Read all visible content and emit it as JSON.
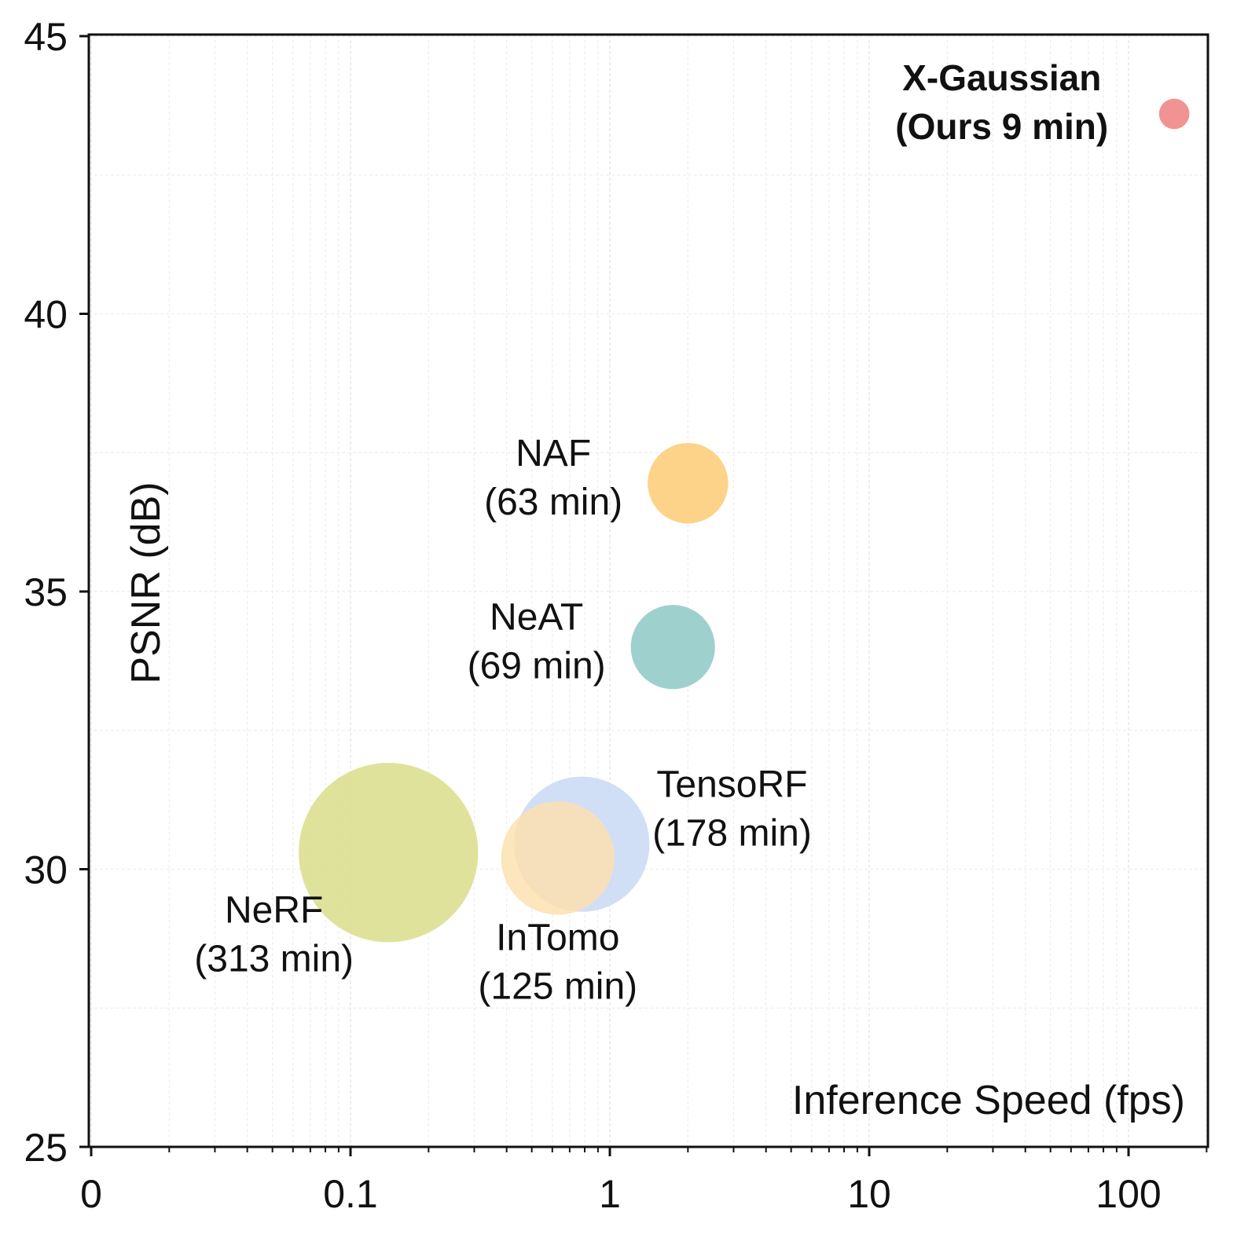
{
  "chart_data": {
    "type": "scatter",
    "xlabel": "Inference Speed (fps)",
    "ylabel": "PSNR (dB)",
    "x_scale": "log",
    "x_ticks": [
      {
        "value": 0.01,
        "label": "0"
      },
      {
        "value": 0.1,
        "label": "0.1"
      },
      {
        "value": 1,
        "label": "1"
      },
      {
        "value": 10,
        "label": "10"
      },
      {
        "value": 100,
        "label": "100"
      }
    ],
    "y_ticks": [
      25,
      30,
      35,
      40,
      45
    ],
    "xlim": [
      0.01,
      200
    ],
    "ylim": [
      25,
      45
    ],
    "grid": true,
    "points": [
      {
        "name": "NeRF",
        "time": "(313 min)",
        "train_min": 313,
        "x": 0.14,
        "y": 30.3,
        "color": "#d9dd8a",
        "label_pos": "bottom-left"
      },
      {
        "name": "TensoRF",
        "time": "(178 min)",
        "train_min": 178,
        "x": 0.78,
        "y": 30.45,
        "color": "#c8d9f5",
        "label_pos": "right"
      },
      {
        "name": "InTomo",
        "time": "(125 min)",
        "train_min": 125,
        "x": 0.63,
        "y": 30.2,
        "color": "#fde0b0",
        "label_pos": "bottom"
      },
      {
        "name": "NeAT",
        "time": "(69 min)",
        "train_min": 69,
        "x": 1.75,
        "y": 34.0,
        "color": "#8dc8c5",
        "label_pos": "left"
      },
      {
        "name": "NAF",
        "time": "(63 min)",
        "train_min": 63,
        "x": 2.0,
        "y": 36.95,
        "color": "#fdca74",
        "label_pos": "left"
      },
      {
        "name": "X-Gaussian",
        "time": "(Ours 9 min)",
        "train_min": 9,
        "x": 150,
        "y": 43.6,
        "color": "#f08080",
        "label_pos": "left",
        "highlight": true,
        "label_color": "#c00000"
      }
    ]
  }
}
